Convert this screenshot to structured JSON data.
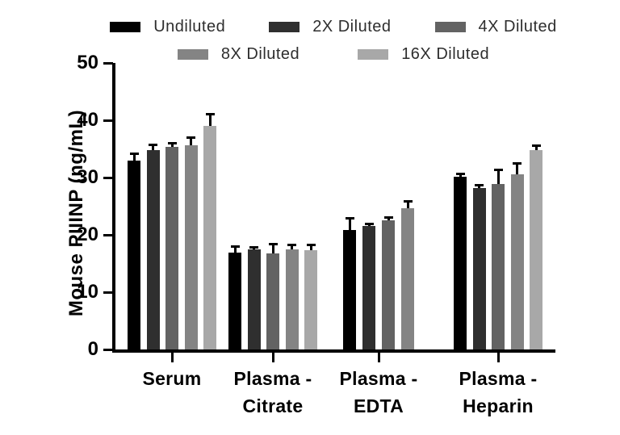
{
  "chart_data": {
    "type": "bar",
    "title": "",
    "xlabel": "",
    "ylabel": "Mouse PIIINP (ng/mL)",
    "ylim": [
      0,
      50
    ],
    "yticks": [
      0,
      10,
      20,
      30,
      40,
      50
    ],
    "grid": false,
    "legend_position": "top",
    "legend_rows": [
      [
        "Undiluted",
        "2X Diluted",
        "4X Diluted"
      ],
      [
        "8X Diluted",
        "16X Diluted"
      ]
    ],
    "series_names": [
      "Undiluted",
      "2X Diluted",
      "4X Diluted",
      "8X Diluted",
      "16X Diluted"
    ],
    "series_colors": [
      "#000000",
      "#2f2f2f",
      "#636363",
      "#848484",
      "#a8a8a8"
    ],
    "error_bar_color": "#000000",
    "groups": [
      {
        "label_lines": [
          "Serum"
        ],
        "bars": [
          {
            "series": "Undiluted",
            "value": 32.9,
            "error": 1.3
          },
          {
            "series": "2X Diluted",
            "value": 34.8,
            "error": 1.0
          },
          {
            "series": "4X Diluted",
            "value": 35.4,
            "error": 0.6
          },
          {
            "series": "8X Diluted",
            "value": 35.6,
            "error": 1.4
          },
          {
            "series": "16X Diluted",
            "value": 39.0,
            "error": 2.1
          }
        ]
      },
      {
        "label_lines": [
          "Plasma -",
          "Citrate"
        ],
        "bars": [
          {
            "series": "Undiluted",
            "value": 16.9,
            "error": 1.1
          },
          {
            "series": "2X Diluted",
            "value": 17.4,
            "error": 0.5
          },
          {
            "series": "4X Diluted",
            "value": 16.7,
            "error": 1.8
          },
          {
            "series": "8X Diluted",
            "value": 17.4,
            "error": 0.9
          },
          {
            "series": "16X Diluted",
            "value": 17.3,
            "error": 1.0
          }
        ]
      },
      {
        "label_lines": [
          "Plasma -",
          "EDTA"
        ],
        "bars": [
          {
            "series": "Undiluted",
            "value": 20.8,
            "error": 2.2
          },
          {
            "series": "2X Diluted",
            "value": 21.5,
            "error": 0.5
          },
          {
            "series": "4X Diluted",
            "value": 22.5,
            "error": 0.6
          },
          {
            "series": "8X Diluted",
            "value": 24.7,
            "error": 1.2
          }
        ]
      },
      {
        "label_lines": [
          "Plasma -",
          "Heparin"
        ],
        "bars": [
          {
            "series": "Undiluted",
            "value": 30.1,
            "error": 0.6
          },
          {
            "series": "2X Diluted",
            "value": 28.2,
            "error": 0.5
          },
          {
            "series": "4X Diluted",
            "value": 28.9,
            "error": 2.5
          },
          {
            "series": "8X Diluted",
            "value": 30.6,
            "error": 1.9
          },
          {
            "series": "16X Diluted",
            "value": 34.8,
            "error": 0.9
          }
        ]
      }
    ]
  }
}
